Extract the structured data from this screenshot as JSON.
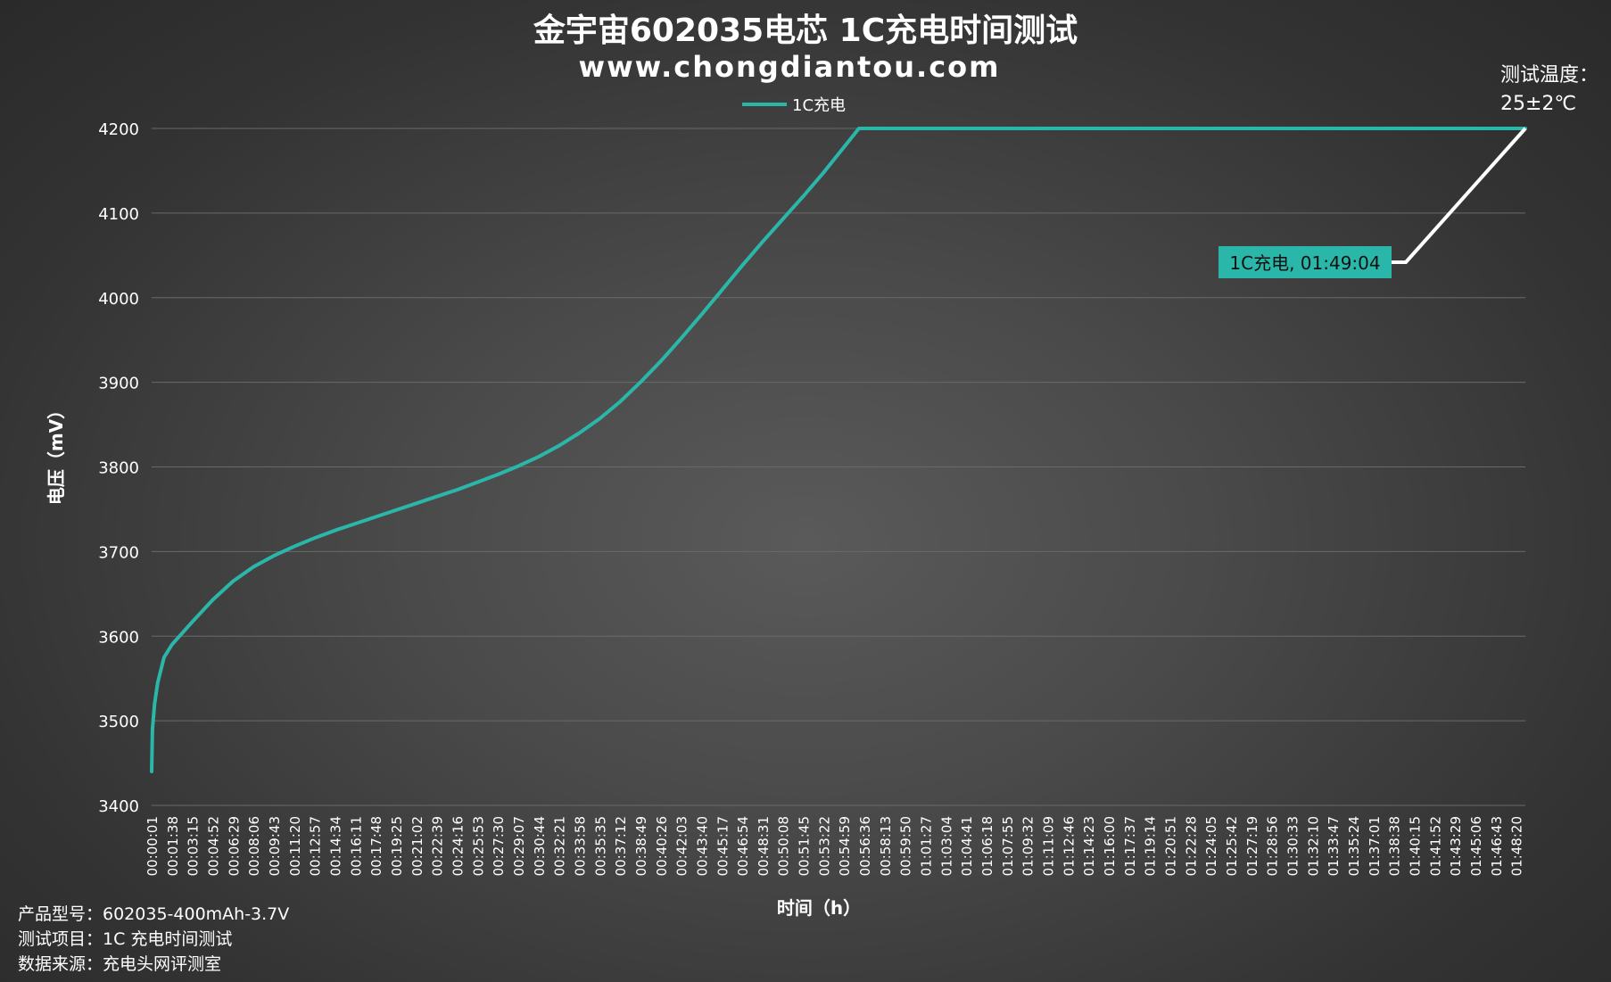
{
  "chart_data": {
    "type": "line",
    "title": "金宇宙602035电芯 1C充电时间测试",
    "subtitle": "www.chongdiantou.com",
    "xlabel": "时间（h）",
    "ylabel": "电压（mV）",
    "ylim": [
      3400,
      4200
    ],
    "yticks": [
      3400,
      3500,
      3600,
      3700,
      3800,
      3900,
      4000,
      4100,
      4200
    ],
    "grid": "horizontal",
    "legend_position": "top-center",
    "x_range_seconds": [
      1,
      6544
    ],
    "xtick_labels": [
      "00:00:01",
      "00:01:38",
      "00:03:15",
      "00:04:52",
      "00:06:29",
      "00:08:06",
      "00:09:43",
      "00:11:20",
      "00:12:57",
      "00:14:34",
      "00:16:11",
      "00:17:48",
      "00:19:25",
      "00:21:02",
      "00:22:39",
      "00:24:16",
      "00:25:53",
      "00:27:30",
      "00:29:07",
      "00:30:44",
      "00:32:21",
      "00:33:58",
      "00:35:35",
      "00:37:12",
      "00:38:49",
      "00:40:26",
      "00:42:03",
      "00:43:40",
      "00:45:17",
      "00:46:54",
      "00:48:31",
      "00:50:08",
      "00:51:45",
      "00:53:22",
      "00:54:59",
      "00:56:36",
      "00:58:13",
      "00:59:50",
      "01:01:27",
      "01:03:04",
      "01:04:41",
      "01:06:18",
      "01:07:55",
      "01:09:32",
      "01:11:09",
      "01:12:46",
      "01:14:23",
      "01:16:00",
      "01:17:37",
      "01:19:14",
      "01:20:51",
      "01:22:28",
      "01:24:05",
      "01:25:42",
      "01:27:19",
      "01:28:56",
      "01:30:33",
      "01:32:10",
      "01:33:47",
      "01:35:24",
      "01:37:01",
      "01:38:38",
      "01:40:15",
      "01:41:52",
      "01:43:29",
      "01:45:06",
      "01:46:43",
      "01:48:20"
    ],
    "series": [
      {
        "name": "1C充电",
        "color": "#2ab7a9",
        "points": [
          [
            "00:00:01",
            3440
          ],
          [
            "00:00:05",
            3490
          ],
          [
            "00:00:15",
            3520
          ],
          [
            "00:00:30",
            3545
          ],
          [
            "00:01:00",
            3575
          ],
          [
            "00:01:38",
            3590
          ],
          [
            "00:03:15",
            3617
          ],
          [
            "00:04:52",
            3643
          ],
          [
            "00:06:29",
            3665
          ],
          [
            "00:08:06",
            3682
          ],
          [
            "00:09:43",
            3695
          ],
          [
            "00:11:20",
            3706
          ],
          [
            "00:12:57",
            3716
          ],
          [
            "00:14:34",
            3725
          ],
          [
            "00:16:11",
            3733
          ],
          [
            "00:17:48",
            3741
          ],
          [
            "00:19:25",
            3749
          ],
          [
            "00:21:02",
            3757
          ],
          [
            "00:22:39",
            3765
          ],
          [
            "00:24:16",
            3773
          ],
          [
            "00:25:53",
            3782
          ],
          [
            "00:27:30",
            3791
          ],
          [
            "00:29:07",
            3801
          ],
          [
            "00:30:44",
            3812
          ],
          [
            "00:32:21",
            3825
          ],
          [
            "00:33:58",
            3840
          ],
          [
            "00:35:35",
            3857
          ],
          [
            "00:37:12",
            3877
          ],
          [
            "00:38:49",
            3900
          ],
          [
            "00:40:26",
            3925
          ],
          [
            "00:42:03",
            3952
          ],
          [
            "00:43:40",
            3980
          ],
          [
            "00:45:17",
            4009
          ],
          [
            "00:46:54",
            4038
          ],
          [
            "00:48:31",
            4066
          ],
          [
            "00:50:08",
            4093
          ],
          [
            "00:51:45",
            4120
          ],
          [
            "00:53:22",
            4148
          ],
          [
            "00:54:59",
            4178
          ],
          [
            "00:56:10",
            4200
          ],
          [
            "00:56:36",
            4200
          ],
          [
            "01:00:00",
            4200
          ],
          [
            "01:10:00",
            4200
          ],
          [
            "01:20:00",
            4200
          ],
          [
            "01:30:00",
            4200
          ],
          [
            "01:40:00",
            4200
          ],
          [
            "01:49:04",
            4200
          ]
        ]
      }
    ],
    "annotation": {
      "text": "1C充电, 01:49:04",
      "point": [
        "01:49:04",
        4200
      ]
    }
  },
  "temperature": {
    "line1": "测试温度：",
    "line2": "25±2℃"
  },
  "info": {
    "model": "产品型号：602035-400mAh-3.7V",
    "item": "测试项目：1C 充电时间测试",
    "source": "数据来源：充电头网评测室"
  },
  "colors": {
    "series": "#2ab7a9",
    "annotation_bg": "#2ab7a9",
    "leader_line": "#ffffff",
    "grid": "#6a6a6a",
    "axis_text": "#ffffff"
  }
}
